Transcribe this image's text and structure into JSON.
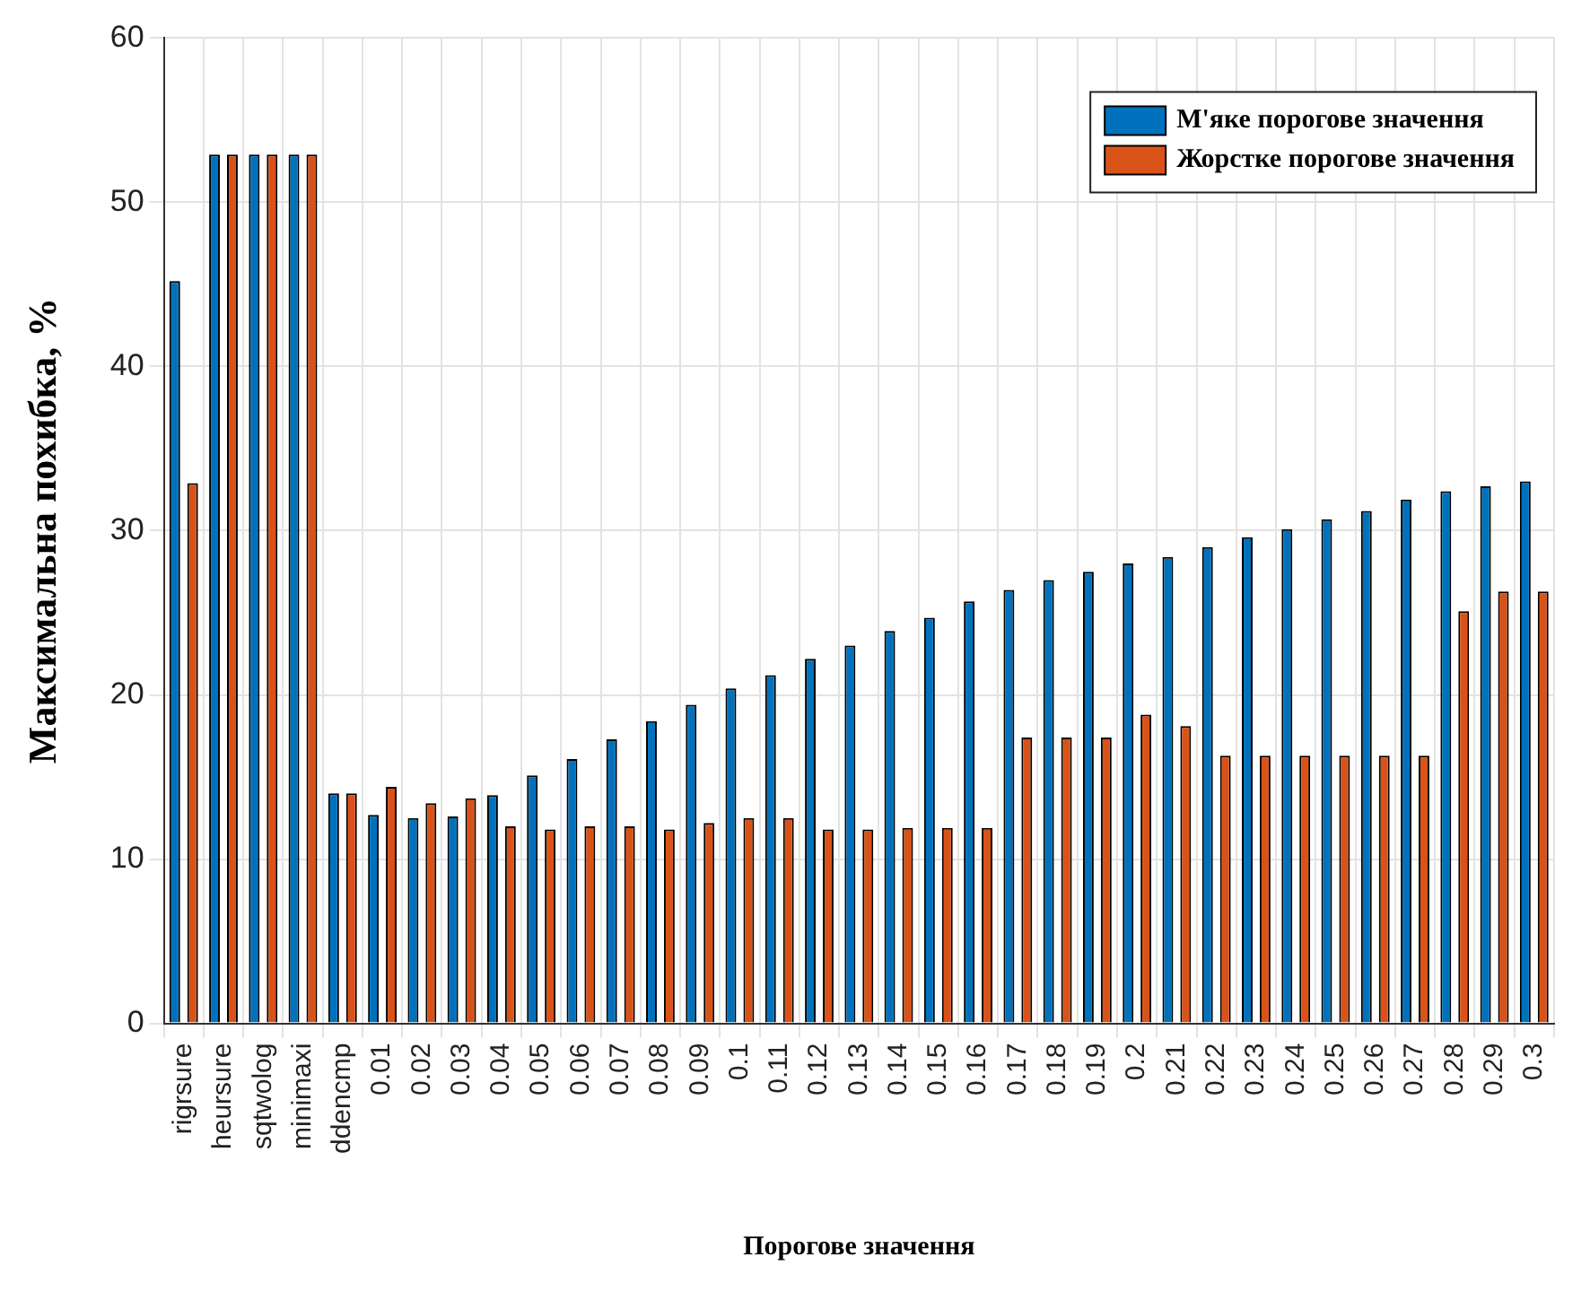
{
  "chart_data": {
    "type": "bar",
    "xlabel": "Порогове значення",
    "ylabel": "Максимальна похибка, %",
    "categories": [
      "rigrsure",
      "heursure",
      "sqtwolog",
      "minimaxi",
      "ddencmp",
      "0.01",
      "0.02",
      "0.03",
      "0.04",
      "0.05",
      "0.06",
      "0.07",
      "0.08",
      "0.09",
      "0.1",
      "0.11",
      "0.12",
      "0.13",
      "0.14",
      "0.15",
      "0.16",
      "0.17",
      "0.18",
      "0.19",
      "0.2",
      "0.21",
      "0.22",
      "0.23",
      "0.24",
      "0.25",
      "0.26",
      "0.27",
      "0.28",
      "0.29",
      "0.3"
    ],
    "series": [
      {
        "name": "М'яке порогове значення",
        "color": "#0072bd",
        "values": [
          45.2,
          52.9,
          52.9,
          52.9,
          14.0,
          12.7,
          12.5,
          12.6,
          13.9,
          15.1,
          16.1,
          17.3,
          18.4,
          19.4,
          20.4,
          21.2,
          22.2,
          23.0,
          23.9,
          24.7,
          25.7,
          26.4,
          27.0,
          27.5,
          28.0,
          28.4,
          29.0,
          29.6,
          30.1,
          30.7,
          31.2,
          31.9,
          32.4,
          32.7,
          33.0
        ]
      },
      {
        "name": "Жорстке порогове значення",
        "color": "#d95319",
        "values": [
          32.9,
          52.9,
          52.9,
          52.9,
          14.0,
          14.4,
          13.4,
          13.7,
          12.0,
          11.8,
          12.0,
          12.0,
          11.8,
          12.2,
          12.5,
          12.5,
          11.8,
          11.8,
          11.9,
          11.9,
          11.9,
          17.4,
          17.4,
          17.4,
          18.8,
          18.1,
          16.3,
          16.3,
          16.3,
          16.3,
          16.3,
          16.3,
          25.1,
          26.3,
          26.3
        ]
      }
    ],
    "ylim": [
      0,
      60
    ],
    "yticks": [
      0,
      10,
      20,
      30,
      40,
      50,
      60
    ],
    "grid": true,
    "legend": "top right"
  }
}
